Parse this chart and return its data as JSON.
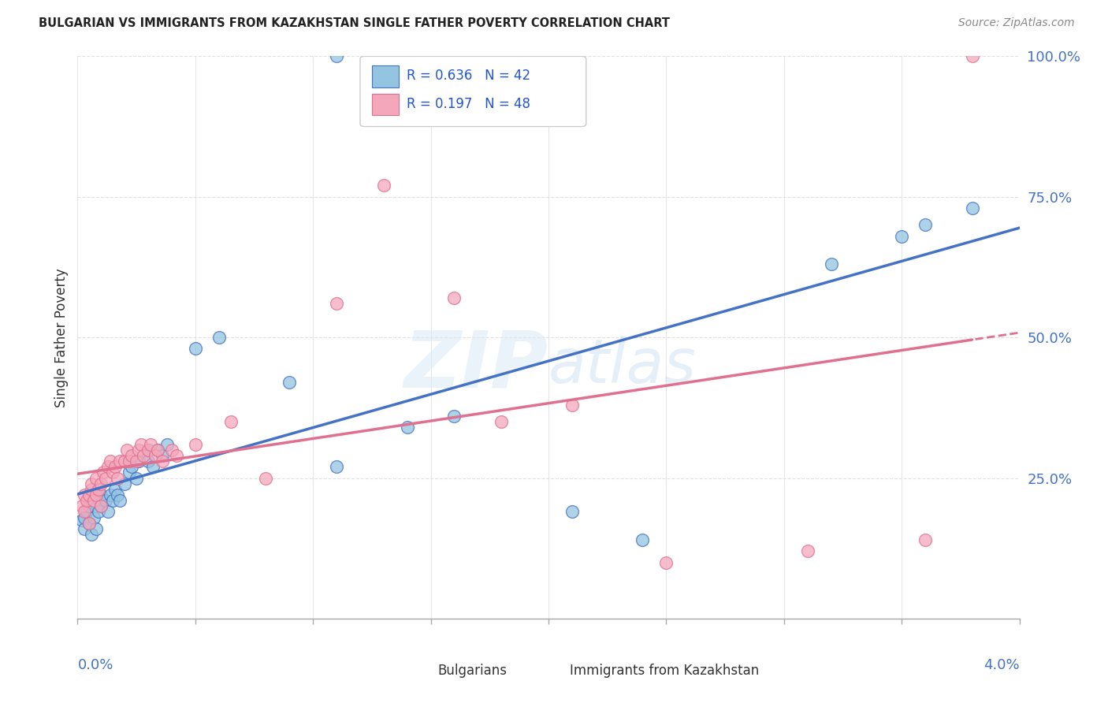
{
  "title": "BULGARIAN VS IMMIGRANTS FROM KAZAKHSTAN SINGLE FATHER POVERTY CORRELATION CHART",
  "source": "Source: ZipAtlas.com",
  "ylabel": "Single Father Poverty",
  "legend_label1": "Bulgarians",
  "legend_label2": "Immigrants from Kazakhstan",
  "r1": 0.636,
  "n1": 42,
  "r2": 0.197,
  "n2": 48,
  "color_blue": "#93c4e0",
  "color_pink": "#f4a7bb",
  "color_blue_line": "#4472c4",
  "color_pink_line": "#e07090",
  "watermark": "ZIPatlas",
  "blue_x": [
    0.0002,
    0.0003,
    0.0003,
    0.0004,
    0.0005,
    0.0005,
    0.0006,
    0.0007,
    0.0008,
    0.0009,
    0.001,
    0.001,
    0.0012,
    0.0013,
    0.0014,
    0.0015,
    0.0016,
    0.0017,
    0.0018,
    0.002,
    0.0022,
    0.0023,
    0.0025,
    0.0026,
    0.003,
    0.003,
    0.0032,
    0.0034,
    0.0036,
    0.0038,
    0.005,
    0.006,
    0.009,
    0.011,
    0.014,
    0.016,
    0.021,
    0.024,
    0.032,
    0.035,
    0.036,
    0.038
  ],
  "blue_y": [
    0.175,
    0.16,
    0.18,
    0.19,
    0.17,
    0.2,
    0.15,
    0.18,
    0.16,
    0.19,
    0.2,
    0.22,
    0.21,
    0.19,
    0.22,
    0.21,
    0.23,
    0.22,
    0.21,
    0.24,
    0.26,
    0.27,
    0.25,
    0.28,
    0.28,
    0.3,
    0.27,
    0.3,
    0.29,
    0.31,
    0.48,
    0.5,
    0.42,
    0.27,
    0.34,
    0.36,
    0.19,
    0.14,
    0.63,
    0.68,
    0.7,
    0.73
  ],
  "pink_x": [
    0.0002,
    0.0003,
    0.0003,
    0.0004,
    0.0005,
    0.0005,
    0.0006,
    0.0006,
    0.0007,
    0.0008,
    0.0008,
    0.0009,
    0.001,
    0.001,
    0.0011,
    0.0012,
    0.0013,
    0.0014,
    0.0015,
    0.0016,
    0.0017,
    0.0018,
    0.002,
    0.0021,
    0.0022,
    0.0023,
    0.0025,
    0.0026,
    0.0027,
    0.0028,
    0.003,
    0.0031,
    0.0033,
    0.0034,
    0.0036,
    0.004,
    0.0042,
    0.005,
    0.0065,
    0.008,
    0.011,
    0.013,
    0.016,
    0.018,
    0.021,
    0.025,
    0.031,
    0.036
  ],
  "pink_y": [
    0.2,
    0.19,
    0.22,
    0.21,
    0.17,
    0.22,
    0.23,
    0.24,
    0.21,
    0.22,
    0.25,
    0.23,
    0.2,
    0.24,
    0.26,
    0.25,
    0.27,
    0.28,
    0.26,
    0.27,
    0.25,
    0.28,
    0.28,
    0.3,
    0.28,
    0.29,
    0.28,
    0.3,
    0.31,
    0.29,
    0.3,
    0.31,
    0.29,
    0.3,
    0.28,
    0.3,
    0.29,
    0.31,
    0.35,
    0.25,
    0.56,
    0.77,
    0.57,
    0.35,
    0.38,
    0.1,
    0.12,
    0.14
  ],
  "xlim": [
    0.0,
    0.04
  ],
  "ylim": [
    0.0,
    1.0
  ],
  "yticks": [
    0.0,
    0.25,
    0.5,
    0.75,
    1.0
  ],
  "ytick_labels": [
    "",
    "25.0%",
    "50.0%",
    "75.0%",
    "100.0%"
  ],
  "background_color": "#ffffff",
  "grid_color": "#e0e0e0"
}
